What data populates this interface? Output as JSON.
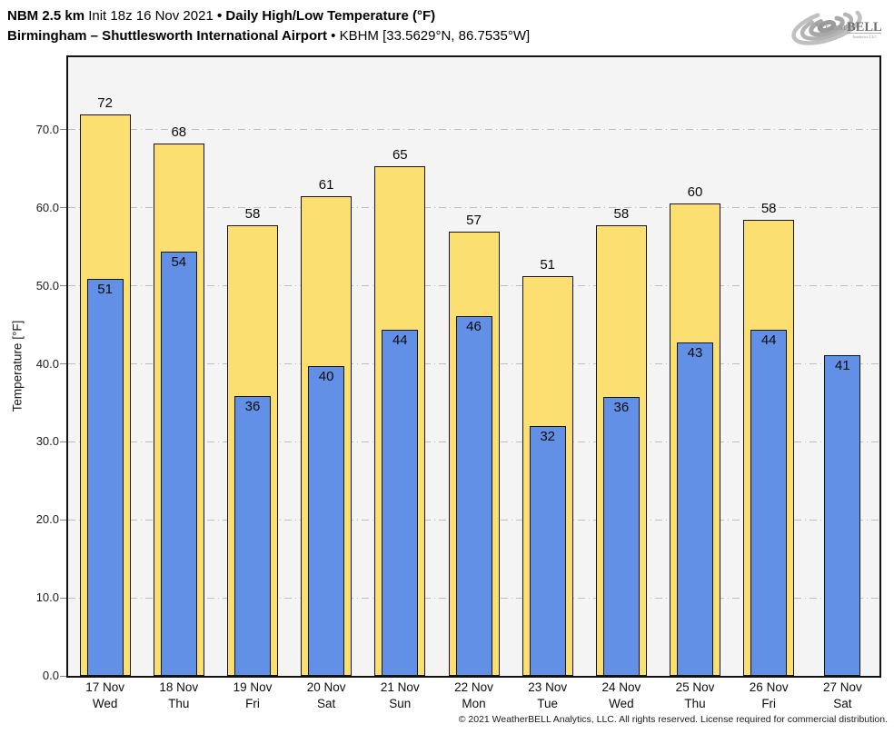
{
  "header": {
    "line1": {
      "model": "NBM 2.5 km",
      "init": "Init 18z 16 Nov 2021",
      "bullet": "•",
      "product": "Daily High/Low Temperature (°F)"
    },
    "line2": {
      "station": "Birmingham – Shuttlesworth International Airport",
      "bullet": "•",
      "station_id": "KBHM [33.5629°N, 86.7535°W]"
    }
  },
  "logo": {
    "weather": "Weather",
    "bell": "BELL",
    "analytics": "Analytics LLC"
  },
  "footer": {
    "copyright": "© 2021 WeatherBELL Analytics, LLC. All rights reserved. License required for commercial distribution."
  },
  "chart_data": {
    "type": "bar",
    "title": "Daily High/Low Temperature (°F)",
    "subtitle": "Birmingham – Shuttlesworth International Airport • KBHM [33.5629°N, 86.7535°W]",
    "xlabel": "",
    "ylabel": "Temperature [°F]",
    "ylim": [
      0,
      79.3
    ],
    "yticks": [
      0,
      10,
      20,
      30,
      40,
      50,
      60,
      70
    ],
    "ytick_labels": [
      "0.0",
      "10.0",
      "20.0",
      "30.0",
      "40.0",
      "50.0",
      "60.0",
      "70.0"
    ],
    "grid": "horizontal-dash-dot",
    "legend": "none",
    "categories": [
      {
        "date": "17 Nov",
        "day": "Wed"
      },
      {
        "date": "18 Nov",
        "day": "Thu"
      },
      {
        "date": "19 Nov",
        "day": "Fri"
      },
      {
        "date": "20 Nov",
        "day": "Sat"
      },
      {
        "date": "21 Nov",
        "day": "Sun"
      },
      {
        "date": "22 Nov",
        "day": "Mon"
      },
      {
        "date": "23 Nov",
        "day": "Tue"
      },
      {
        "date": "24 Nov",
        "day": "Wed"
      },
      {
        "date": "25 Nov",
        "day": "Thu"
      },
      {
        "date": "26 Nov",
        "day": "Fri"
      },
      {
        "date": "27 Nov",
        "day": "Sat"
      }
    ],
    "series": [
      {
        "name": "Daily High",
        "color": "#FBDF70",
        "values": [
          72,
          68,
          58,
          61,
          65,
          57,
          51,
          58,
          60,
          58,
          null
        ],
        "bar_values": [
          72.0,
          68.2,
          57.7,
          61.5,
          65.3,
          56.9,
          51.2,
          57.8,
          60.5,
          58.4,
          null
        ]
      },
      {
        "name": "Daily Low",
        "color": "#6190E6",
        "values": [
          51,
          54,
          36,
          40,
          44,
          46,
          32,
          36,
          43,
          44,
          41
        ],
        "bar_values": [
          50.9,
          54.4,
          35.9,
          39.7,
          44.4,
          46.1,
          32.0,
          35.7,
          42.7,
          44.4,
          41.1
        ]
      }
    ],
    "colors": {
      "high_fill": "#FBDF70",
      "low_fill": "#6190E6",
      "bar_border": "#141414",
      "plot_bg": "#F4F4F4",
      "grid": "#BDBDBD",
      "page_bg": "#FFFFFF"
    }
  }
}
